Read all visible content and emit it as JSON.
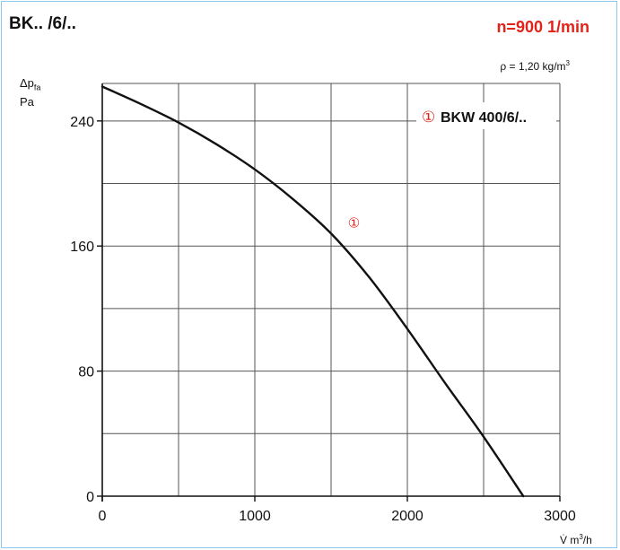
{
  "chart_data": {
    "type": "line",
    "title": "BK.. /6/..",
    "speed": "n=900 1/min",
    "density_label": "ρ = 1,20 kg/m",
    "density_sup": "3",
    "ylabel_symbol": "Δp",
    "ylabel_sub": "fa",
    "ylabel_unit": "Pa",
    "xlabel_symbol": "V̇ m",
    "xlabel_sup": "3",
    "xlabel_unit": "/h",
    "xlim": [
      0,
      3000
    ],
    "ylim": [
      0,
      264
    ],
    "xticks": [
      0,
      1000,
      2000,
      3000
    ],
    "xtick_labels": [
      "0",
      "1000",
      "2000",
      "3000"
    ],
    "xgrid": [
      0,
      500,
      1000,
      1500,
      2000,
      2500,
      3000
    ],
    "yticks": [
      0,
      80,
      160,
      240
    ],
    "ytick_labels": [
      "0",
      "80",
      "160",
      "240"
    ],
    "ygrid": [
      0,
      40,
      80,
      120,
      160,
      200,
      240,
      264
    ],
    "grid": true,
    "series": [
      {
        "name": "BKW 400/6/..",
        "marker": "①",
        "color": "#111111",
        "marker_color": "#e2231a",
        "x": [
          0,
          250,
          500,
          750,
          1000,
          1250,
          1500,
          1750,
          2000,
          2250,
          2500,
          2760
        ],
        "y": [
          262,
          251,
          239,
          225,
          209,
          190,
          168,
          140,
          107,
          72,
          38,
          0
        ]
      }
    ],
    "curve_marker": {
      "symbol": "①",
      "x": 1650,
      "y": 172
    },
    "legend": {
      "symbol": "①",
      "label": "BKW 400/6/..",
      "position": "top-right"
    }
  }
}
